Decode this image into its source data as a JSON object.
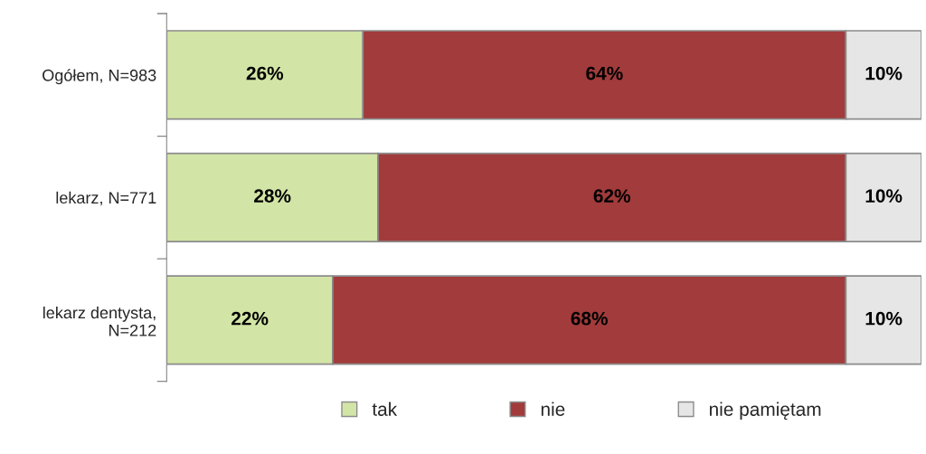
{
  "chart_data": {
    "type": "bar",
    "orientation": "horizontal",
    "stacked": true,
    "categories": [
      "Ogółem, N=983",
      "lekarz, N=771",
      "lekarz dentysta,\nN=212"
    ],
    "series": [
      {
        "name": "tak",
        "color": "#d3e5a6",
        "values": [
          26,
          28,
          22
        ],
        "value_labels": [
          "26%",
          "28%",
          "22%"
        ]
      },
      {
        "name": "nie",
        "color": "#a23b3b",
        "values": [
          64,
          62,
          68
        ],
        "value_labels": [
          "64%",
          "62%",
          "68%"
        ]
      },
      {
        "name": "nie pamiętam",
        "color": "#e6e6e6",
        "values": [
          10,
          10,
          10
        ],
        "value_labels": [
          "10%",
          "10%",
          "10%"
        ]
      }
    ],
    "legend": "bottom",
    "tick_labels": "y"
  }
}
